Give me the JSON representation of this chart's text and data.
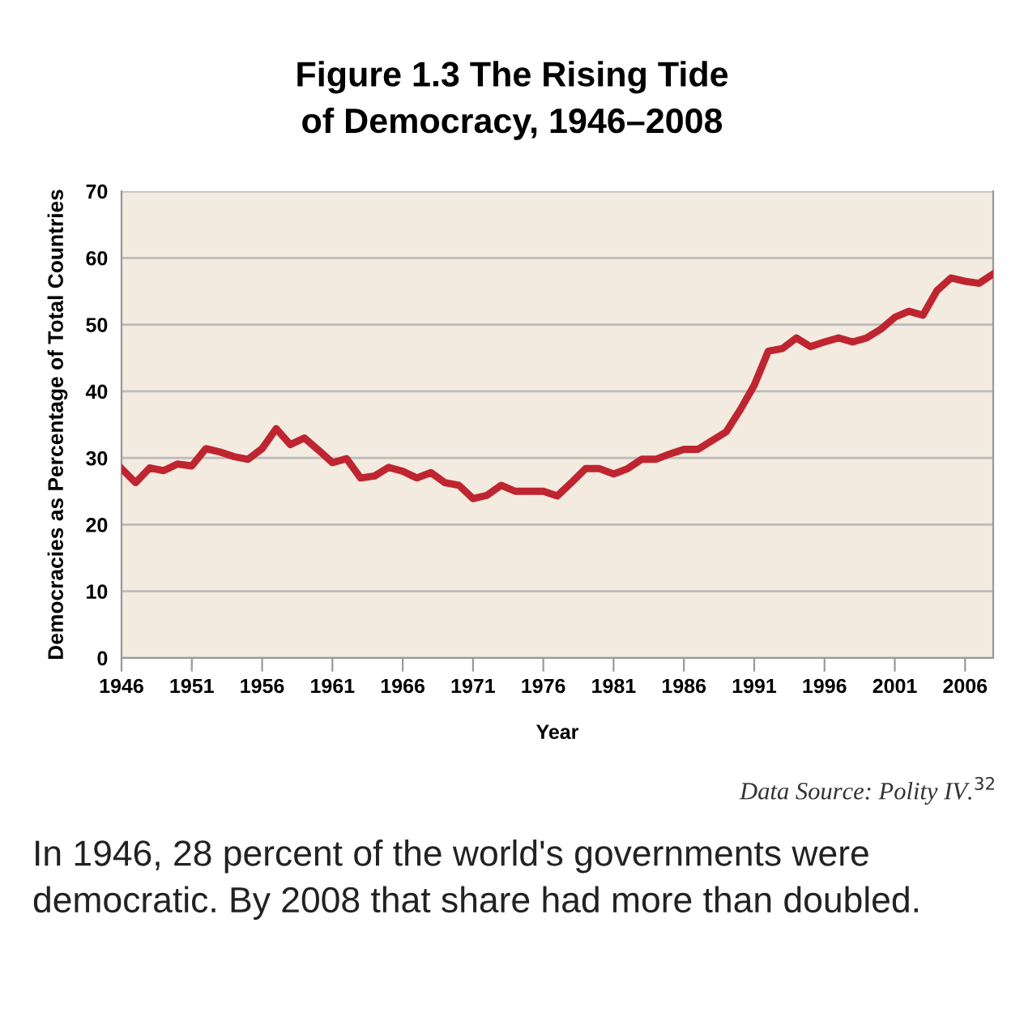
{
  "chart_data": {
    "type": "line",
    "title": "Figure 1.3 The Rising Tide\nof Democracy, 1946–2008",
    "xlabel": "Year",
    "ylabel": "Democracies as Percentage of Total Countries",
    "x": [
      1946,
      1947,
      1948,
      1949,
      1950,
      1951,
      1952,
      1953,
      1954,
      1955,
      1956,
      1957,
      1958,
      1959,
      1960,
      1961,
      1962,
      1963,
      1964,
      1965,
      1966,
      1967,
      1968,
      1969,
      1970,
      1971,
      1972,
      1973,
      1974,
      1975,
      1976,
      1977,
      1978,
      1979,
      1980,
      1981,
      1982,
      1983,
      1984,
      1985,
      1986,
      1987,
      1988,
      1989,
      1990,
      1991,
      1992,
      1993,
      1994,
      1995,
      1996,
      1997,
      1998,
      1999,
      2000,
      2001,
      2002,
      2003,
      2004,
      2005,
      2006,
      2007,
      2008
    ],
    "series": [
      {
        "color": "#be2531",
        "values": [
          28.4,
          26.3,
          28.5,
          28.1,
          29.1,
          28.8,
          31.4,
          30.9,
          30.2,
          29.8,
          31.4,
          34.4,
          32.0,
          33.0,
          31.2,
          29.3,
          29.9,
          27.0,
          27.3,
          28.6,
          28.0,
          27.0,
          27.8,
          26.3,
          25.9,
          23.9,
          24.4,
          25.9,
          25.0,
          25.0,
          25.0,
          24.3,
          26.3,
          28.4,
          28.4,
          27.6,
          28.4,
          29.8,
          29.8,
          30.6,
          31.3,
          31.3,
          32.6,
          33.9,
          37.2,
          40.9,
          46.0,
          46.4,
          48.0,
          46.7,
          47.4,
          48.0,
          47.4,
          48.0,
          49.3,
          51.1,
          52.0,
          51.4,
          55.1,
          57.0,
          56.5,
          56.2,
          57.6
        ]
      }
    ],
    "xlim": [
      1946,
      2008
    ],
    "xticks": [
      1946,
      1951,
      1956,
      1961,
      1966,
      1971,
      1976,
      1981,
      1986,
      1991,
      1996,
      2001,
      2006
    ],
    "ylim": [
      0,
      70
    ],
    "yticks": [
      0,
      10,
      20,
      30,
      40,
      50,
      60,
      70
    ],
    "grid": "y",
    "marker": "none",
    "line_style": "solid",
    "annotations": [
      "Data Source: Polity IV.$^{32}$",
      "In 1946, 28 percent of the world's governments were democratic. By 2008 that share had more than doubled."
    ]
  }
}
